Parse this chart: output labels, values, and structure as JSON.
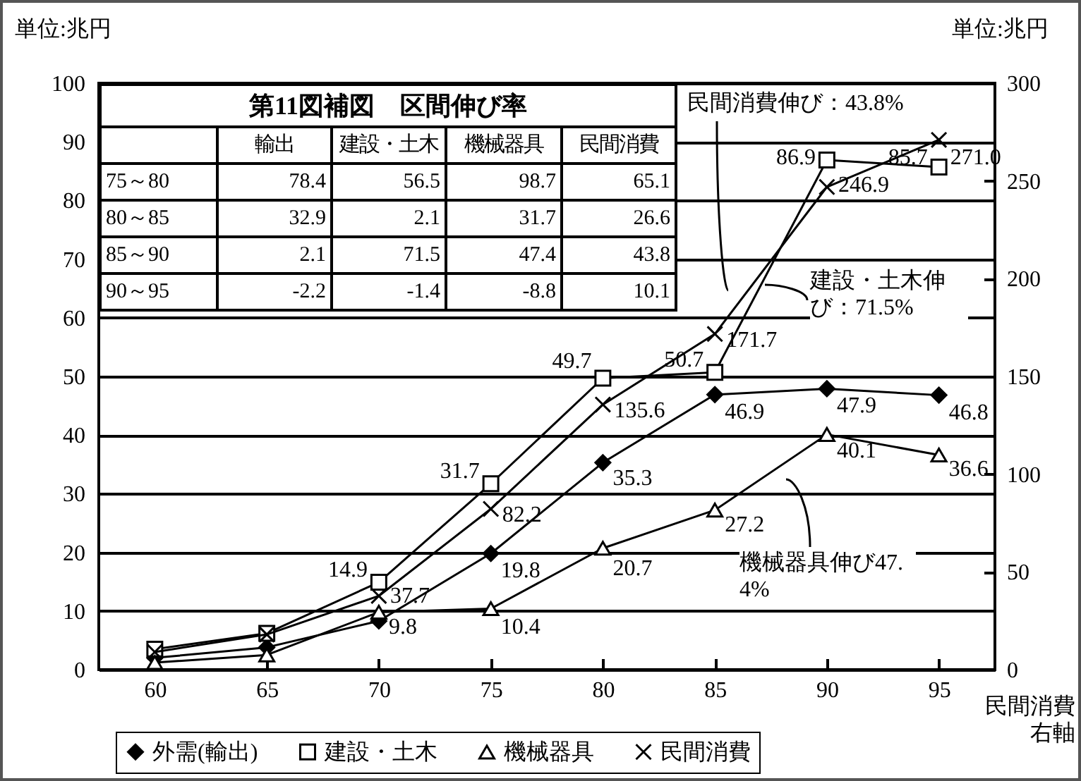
{
  "chart_data": {
    "type": "line",
    "ylabel": "単位:兆円",
    "y2label": "単位:兆円",
    "categories": [
      "60",
      "65",
      "70",
      "75",
      "80",
      "85",
      "90",
      "95"
    ],
    "series": [
      {
        "name": "外需(輸出)",
        "color": "#000000",
        "marker": "diamond",
        "values": [
          2.0,
          3.8,
          8.3,
          19.8,
          35.3,
          46.9,
          47.9,
          46.8
        ],
        "value_labels": [
          null,
          null,
          null,
          "19.8",
          "35.3",
          "46.9",
          "47.9",
          "46.8"
        ]
      },
      {
        "name": "建設・土木",
        "color": "#000000",
        "marker": "square",
        "values": [
          3.5,
          6.2,
          14.9,
          31.7,
          49.7,
          50.7,
          86.9,
          85.7
        ],
        "value_labels": [
          null,
          null,
          "14.9",
          "31.7",
          "49.7",
          "50.7",
          "86.9",
          "85.7"
        ]
      },
      {
        "name": "機械器具",
        "color": "#000000",
        "marker": "triangle",
        "values": [
          1.2,
          2.5,
          9.8,
          10.4,
          20.7,
          27.2,
          40.1,
          36.6
        ],
        "value_labels": [
          null,
          null,
          "9.8",
          "10.4",
          "20.7",
          "27.2",
          "40.1",
          "36.6"
        ]
      },
      {
        "name": "民間消費",
        "color": "#000000",
        "marker": "cross",
        "axis": "y2",
        "values": [
          9,
          18,
          37.7,
          82.2,
          135.6,
          171.7,
          246.9,
          271.0
        ],
        "value_labels": [
          null,
          null,
          "37.7",
          "82.2",
          "135.6",
          "171.7",
          "246.9",
          "271.0"
        ]
      }
    ],
    "ylim": [
      0,
      100
    ],
    "yticks": [
      0,
      10,
      20,
      30,
      40,
      50,
      60,
      70,
      80,
      90,
      100
    ],
    "y2lim": [
      0,
      300
    ],
    "y2ticks": [
      0,
      50,
      100,
      150,
      200,
      250,
      300
    ],
    "grid": "y",
    "legend": "bottom",
    "annotations": [
      "第11図補図　区間伸び率",
      "輸出",
      "建設・土木",
      "機械器具",
      "民間消費",
      "75～80",
      "78.4",
      "56.5",
      "98.7",
      "65.1",
      "80～85",
      "32.9",
      "2.1",
      "31.7",
      "26.6",
      "85～90",
      "2.1",
      "71.5",
      "47.4",
      "43.8",
      "90～95",
      "-2.2",
      "-1.4",
      "-8.8",
      "10.1",
      "民間消費伸び：43.8%",
      "建設・土木伸び：71.5%",
      "機械器具伸び47.4%",
      "民間消費右軸"
    ]
  }
}
